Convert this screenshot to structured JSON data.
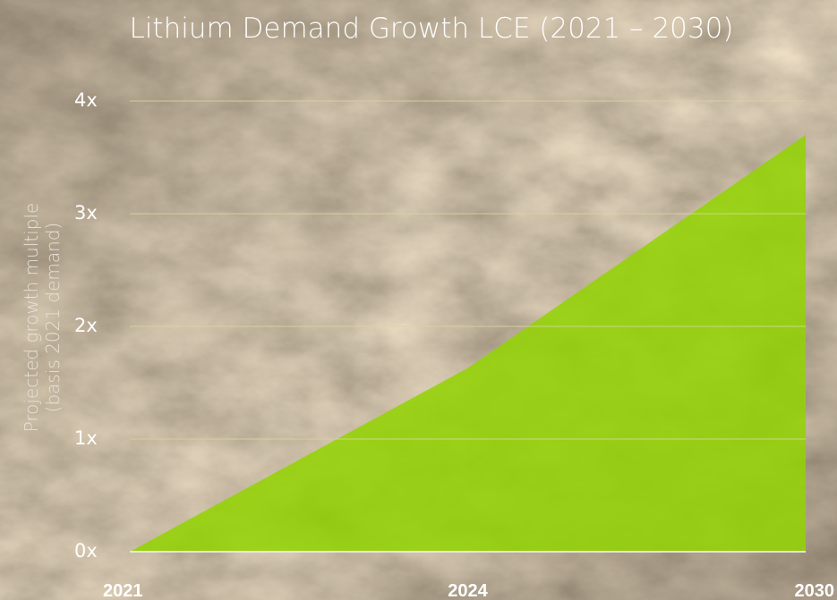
{
  "chart_data": {
    "type": "area",
    "title": "Lithium Demand Growth LCE (2021 – 2030)",
    "ylabel": [
      "Projected growth multiple",
      "(basis 2021 demand)"
    ],
    "categories": [
      "2021",
      "2024",
      "2030"
    ],
    "series": [
      {
        "name": "Projected growth multiple",
        "color": "#92d400",
        "values": [
          0,
          1.63,
          3.7
        ]
      }
    ],
    "ylim": [
      0,
      4
    ],
    "yticks": [
      {
        "value": 0,
        "label": "0x"
      },
      {
        "value": 1,
        "label": "1x"
      },
      {
        "value": 2,
        "label": "2x"
      },
      {
        "value": 3,
        "label": "3x"
      },
      {
        "value": 4,
        "label": "4x"
      }
    ],
    "grid": true
  }
}
